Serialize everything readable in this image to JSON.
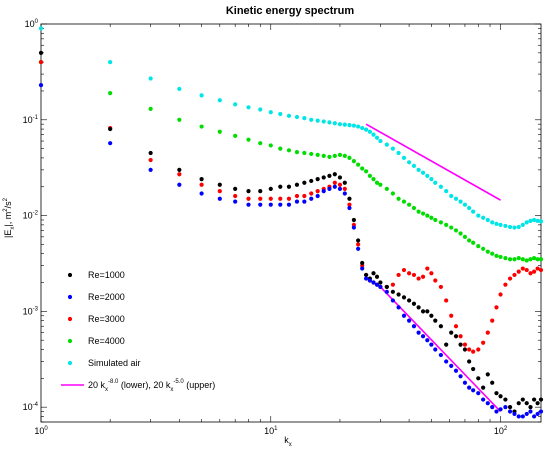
{
  "chart_data": {
    "type": "scatter",
    "title": "Kinetic energy spectrum",
    "xscale": "log",
    "yscale": "log",
    "xlim": [
      1,
      150
    ],
    "ylim": [
      7e-05,
      1
    ],
    "grid": false,
    "legend_position": "bottom-left",
    "xlabel": {
      "main": "k",
      "sub": "x"
    },
    "ylabel": {
      "pre": "|E",
      "sub1": "x",
      "mid": "|, m",
      "sup1": "2",
      "mid2": "/s",
      "sup2": "2"
    },
    "x_ticks": [
      {
        "value": 1,
        "base": "10",
        "exp": "0"
      },
      {
        "value": 10,
        "base": "10",
        "exp": "1"
      },
      {
        "value": 100,
        "base": "10",
        "exp": "2"
      }
    ],
    "y_ticks": [
      {
        "value": 0.0001,
        "base": "10",
        "exp": "-4"
      },
      {
        "value": 0.001,
        "base": "10",
        "exp": "-3"
      },
      {
        "value": 0.01,
        "base": "10",
        "exp": "-2"
      },
      {
        "value": 0.1,
        "base": "10",
        "exp": "-1"
      },
      {
        "value": 1,
        "base": "10",
        "exp": "0"
      }
    ],
    "series": [
      {
        "name": "Re=1000",
        "color": "#000000",
        "x": [
          1,
          2,
          3,
          4,
          5,
          6,
          7,
          8,
          9,
          10,
          11,
          12,
          13,
          14,
          15,
          16,
          17,
          18,
          19,
          20,
          21,
          22,
          23,
          24,
          25,
          26,
          27,
          28,
          29,
          30,
          32,
          34,
          36,
          38,
          40,
          42,
          44,
          46,
          48,
          50,
          52,
          55,
          58,
          61,
          64,
          67,
          70,
          73,
          76,
          80,
          84,
          88,
          92,
          96,
          100,
          105,
          110,
          115,
          120,
          125,
          130,
          135,
          140,
          145,
          150
        ],
        "y": [
          0.5,
          0.08,
          0.045,
          0.03,
          0.024,
          0.021,
          0.019,
          0.018,
          0.018,
          0.019,
          0.02,
          0.02,
          0.021,
          0.022,
          0.023,
          0.024,
          0.025,
          0.026,
          0.027,
          0.025,
          0.022,
          0.015,
          0.009,
          0.0055,
          0.0032,
          0.0024,
          0.0022,
          0.0025,
          0.0023,
          0.002,
          0.0018,
          0.0016,
          0.0015,
          0.0014,
          0.0013,
          0.0012,
          0.0011,
          0.001,
          0.001,
          0.0009,
          0.0008,
          0.0007,
          0.00045,
          0.0006,
          0.00055,
          0.00045,
          0.0004,
          0.0003,
          0.00025,
          0.0002,
          0.00016,
          0.00022,
          0.00018,
          0.00014,
          0.00013,
          0.00012,
          0.0001,
          9e-05,
          0.00011,
          0.00012,
          0.00011,
          0.0001,
          0.00012,
          0.00011,
          0.00012
        ]
      },
      {
        "name": "Re=2000",
        "color": "#0000ff",
        "x": [
          1,
          2,
          3,
          4,
          5,
          6,
          7,
          8,
          9,
          10,
          11,
          12,
          13,
          14,
          15,
          16,
          17,
          18,
          19,
          20,
          21,
          22,
          23,
          24,
          25,
          26,
          27,
          28,
          29,
          30,
          32,
          34,
          36,
          38,
          40,
          42,
          44,
          46,
          48,
          50,
          52,
          55,
          58,
          61,
          64,
          67,
          70,
          73,
          76,
          80,
          84,
          88,
          92,
          96,
          100,
          105,
          110,
          115,
          120,
          125,
          130,
          135,
          140,
          145,
          150
        ],
        "y": [
          0.23,
          0.057,
          0.03,
          0.021,
          0.017,
          0.015,
          0.014,
          0.013,
          0.013,
          0.013,
          0.013,
          0.013,
          0.014,
          0.014,
          0.015,
          0.016,
          0.018,
          0.019,
          0.02,
          0.019,
          0.017,
          0.012,
          0.0075,
          0.0045,
          0.0028,
          0.0022,
          0.0021,
          0.002,
          0.0019,
          0.0018,
          0.0016,
          0.0013,
          0.0011,
          0.0009,
          0.0008,
          0.0007,
          0.0006,
          0.00055,
          0.0005,
          0.00045,
          0.0004,
          0.00035,
          0.0003,
          0.00027,
          0.00024,
          0.00021,
          0.00018,
          0.00016,
          0.00015,
          0.00014,
          0.00012,
          0.00011,
          0.0001,
          9e-05,
          9.5e-05,
          0.0001,
          9e-05,
          8.5e-05,
          8e-05,
          8e-05,
          8.5e-05,
          9e-05,
          8e-05,
          8.5e-05,
          9e-05
        ]
      },
      {
        "name": "Re=3000",
        "color": "#ff0000",
        "x": [
          1,
          2,
          3,
          4,
          5,
          6,
          7,
          8,
          9,
          10,
          11,
          12,
          13,
          14,
          15,
          16,
          17,
          18,
          19,
          20,
          21,
          22,
          23,
          24,
          25,
          26,
          27,
          28,
          29,
          30,
          32,
          34,
          36,
          38,
          40,
          42,
          44,
          46,
          48,
          50,
          52,
          55,
          58,
          61,
          64,
          67,
          70,
          73,
          76,
          80,
          84,
          88,
          92,
          96,
          100,
          105,
          110,
          115,
          120,
          125,
          130,
          135,
          140,
          145,
          150
        ],
        "y": [
          0.4,
          0.082,
          0.038,
          0.027,
          0.021,
          0.018,
          0.016,
          0.015,
          0.015,
          0.015,
          0.015,
          0.015,
          0.016,
          0.016,
          0.017,
          0.018,
          0.019,
          0.02,
          0.022,
          0.021,
          0.019,
          0.013,
          0.008,
          0.005,
          0.003,
          0.0024,
          0.0021,
          0.002,
          0.0019,
          0.0018,
          0.0018,
          0.0019,
          0.0024,
          0.0027,
          0.0025,
          0.0024,
          0.0022,
          0.0023,
          0.0028,
          0.0025,
          0.0021,
          0.0018,
          0.0013,
          0.0009,
          0.0007,
          0.00055,
          0.00045,
          0.0004,
          0.00038,
          0.0004,
          0.00047,
          0.0006,
          0.0008,
          0.0011,
          0.0015,
          0.0019,
          0.0022,
          0.0024,
          0.0026,
          0.0028,
          0.0027,
          0.0025,
          0.0026,
          0.0028,
          0.0027
        ]
      },
      {
        "name": "Re=4000",
        "color": "#00dd00",
        "x": [
          1,
          2,
          3,
          4,
          5,
          6,
          7,
          8,
          9,
          10,
          11,
          12,
          13,
          14,
          15,
          16,
          17,
          18,
          19,
          20,
          21,
          22,
          23,
          24,
          25,
          26,
          27,
          28,
          29,
          30,
          32,
          34,
          36,
          38,
          40,
          42,
          44,
          46,
          48,
          50,
          52,
          55,
          58,
          61,
          64,
          67,
          70,
          73,
          76,
          80,
          84,
          88,
          92,
          96,
          100,
          105,
          110,
          115,
          120,
          125,
          130,
          135,
          140,
          145,
          150
        ],
        "y": [
          0.4,
          0.19,
          0.13,
          0.1,
          0.085,
          0.075,
          0.068,
          0.062,
          0.057,
          0.054,
          0.05,
          0.048,
          0.046,
          0.045,
          0.044,
          0.043,
          0.042,
          0.041,
          0.042,
          0.043,
          0.042,
          0.04,
          0.037,
          0.034,
          0.031,
          0.029,
          0.026,
          0.024,
          0.022,
          0.021,
          0.019,
          0.017,
          0.015,
          0.014,
          0.013,
          0.012,
          0.011,
          0.0105,
          0.01,
          0.0095,
          0.009,
          0.0085,
          0.008,
          0.0075,
          0.007,
          0.0065,
          0.006,
          0.0055,
          0.0052,
          0.0048,
          0.0045,
          0.0042,
          0.004,
          0.0038,
          0.0037,
          0.0036,
          0.0035,
          0.0035,
          0.0036,
          0.0035,
          0.0034,
          0.0035,
          0.0036,
          0.0035,
          0.0035
        ]
      },
      {
        "name": "Simulated air",
        "color": "#00e5e5",
        "x": [
          1,
          2,
          3,
          4,
          5,
          6,
          7,
          8,
          9,
          10,
          11,
          12,
          13,
          14,
          15,
          16,
          17,
          18,
          19,
          20,
          21,
          22,
          23,
          24,
          25,
          26,
          27,
          28,
          29,
          30,
          32,
          34,
          36,
          38,
          40,
          42,
          44,
          46,
          48,
          50,
          52,
          55,
          58,
          61,
          64,
          67,
          70,
          73,
          76,
          80,
          84,
          88,
          92,
          96,
          100,
          105,
          110,
          115,
          120,
          125,
          130,
          135,
          140,
          145,
          150
        ],
        "y": [
          0.9,
          0.4,
          0.27,
          0.21,
          0.18,
          0.16,
          0.145,
          0.135,
          0.128,
          0.12,
          0.115,
          0.11,
          0.107,
          0.104,
          0.1,
          0.098,
          0.096,
          0.094,
          0.092,
          0.09,
          0.089,
          0.088,
          0.087,
          0.085,
          0.082,
          0.079,
          0.075,
          0.07,
          0.065,
          0.06,
          0.055,
          0.05,
          0.045,
          0.04,
          0.036,
          0.033,
          0.03,
          0.028,
          0.026,
          0.024,
          0.022,
          0.02,
          0.018,
          0.016,
          0.015,
          0.014,
          0.013,
          0.012,
          0.011,
          0.01,
          0.0095,
          0.009,
          0.0085,
          0.0082,
          0.008,
          0.0078,
          0.0076,
          0.0075,
          0.0076,
          0.008,
          0.0085,
          0.0088,
          0.009,
          0.0088,
          0.0087
        ]
      }
    ],
    "fit_lines": [
      {
        "color": "#ff00ff",
        "k": [
          26,
          100
        ],
        "E": [
          0.09,
          0.0145
        ]
      },
      {
        "color": "#ff00ff",
        "k": [
          30,
          100
        ],
        "E": [
          0.0018,
          9e-05
        ]
      }
    ],
    "legend": {
      "entries": [
        "Re=1000",
        "Re=2000",
        "Re=3000",
        "Re=4000",
        "Simulated air"
      ],
      "line_entry": {
        "color": "#ff00ff",
        "coef1": "20 k",
        "sub1": "x",
        "sup1": "-8.0",
        "tail1": " (lower), ",
        "coef2": "20 k",
        "sub2": "x",
        "sup2": "-5.0",
        "tail2": " (upper)"
      }
    }
  }
}
